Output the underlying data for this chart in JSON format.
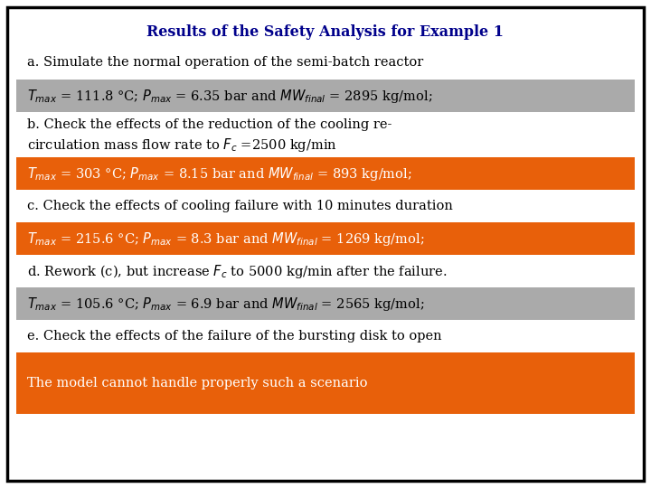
{
  "title": "Results of the Safety Analysis for Example 1",
  "title_color": "#00008B",
  "background_color": "#FFFFFF",
  "border_color": "#000000",
  "gray_color": "#AAAAAA",
  "orange_color": "#E8600A",
  "title_fontsize": 11.5,
  "body_fontsize": 10.5,
  "rows": [
    {
      "bg": null,
      "text": "a. Simulate the normal operation of the semi-batch reactor",
      "lines": 1
    },
    {
      "bg": "gray",
      "text": "$T_{max}$ = 111.8 °C; $P_{max}$ = 6.35 bar and $\\mathit{MW}_{final}$ = 2895 kg/mol;",
      "lines": 1
    },
    {
      "bg": null,
      "text": "b. Check the effects of the reduction of the cooling re-\ncirculation mass flow rate to $F_c$ =2500 kg/min",
      "lines": 2
    },
    {
      "bg": "orange",
      "text": "$T_{max}$ = 303 °C; $P_{max}$ = 8.15 bar and $\\mathit{MW}_{final}$ = 893 kg/mol;",
      "lines": 1
    },
    {
      "bg": null,
      "text": "c. Check the effects of cooling failure with 10 minutes duration",
      "lines": 1
    },
    {
      "bg": "orange",
      "text": "$T_{max}$ = 215.6 °C; $P_{max}$ = 8.3 bar and $\\mathit{MW}_{final}$ = 1269 kg/mol;",
      "lines": 1
    },
    {
      "bg": null,
      "text": "d. Rework (c), but increase $F_c$ to 5000 kg/min after the failure.",
      "lines": 1
    },
    {
      "bg": "gray",
      "text": "$T_{max}$ = 105.6 °C; $P_{max}$ = 6.9 bar and $\\mathit{MW}_{final}$ = 2565 kg/mol;",
      "lines": 1
    },
    {
      "bg": null,
      "text": "e. Check the effects of the failure of the bursting disk to open",
      "lines": 1
    },
    {
      "bg": "orange",
      "text": "The model cannot handle properly such a scenario",
      "lines": 1
    }
  ]
}
